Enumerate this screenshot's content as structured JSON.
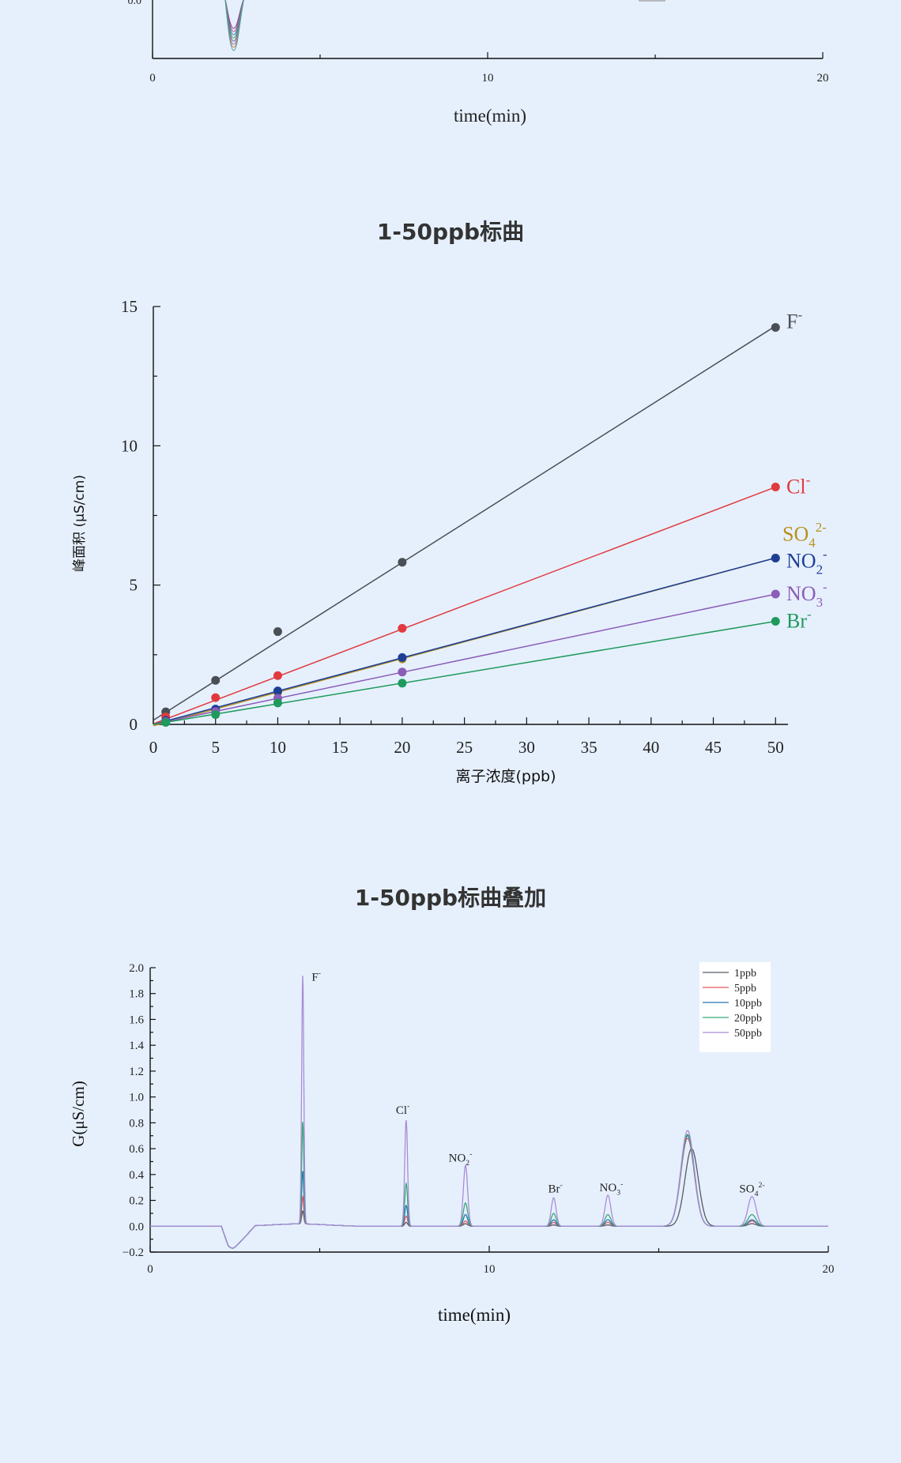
{
  "top_chart": {
    "xlabel": "time(min)",
    "x_ticks": [
      "0",
      "10",
      "20"
    ],
    "y_tick_partial": "0.0"
  },
  "calibration": {
    "title": "1-50ppb标曲"
  },
  "overlay": {
    "title": "1-50ppb标曲叠加"
  },
  "chart_data": [
    {
      "type": "line",
      "title": "",
      "xlabel": "time(min)",
      "ylabel": "",
      "xlim": [
        0,
        20
      ],
      "x_ticks": [
        0,
        10,
        20
      ],
      "note": "partially cropped chromatogram overlay; only a negative dip near 2.4 min is visible",
      "series": []
    },
    {
      "type": "scatter",
      "title": "1-50ppb标曲",
      "xlabel": "离子浓度(ppb)",
      "ylabel": "峰面积 (μS/cm)",
      "xlim": [
        0,
        51
      ],
      "ylim": [
        0,
        15
      ],
      "x_ticks": [
        0,
        5,
        10,
        15,
        20,
        25,
        30,
        35,
        40,
        45,
        50
      ],
      "y_ticks": [
        0,
        5,
        10,
        15
      ],
      "grid": false,
      "x": [
        1,
        5,
        10,
        20,
        50
      ],
      "series": [
        {
          "label": "F",
          "sup": "-",
          "sub": "",
          "color": "#4a4f55",
          "values": [
            0.45,
            1.58,
            3.33,
            5.82,
            14.25
          ],
          "fit": [
            0.15,
            0.283
          ]
        },
        {
          "label": "Cl",
          "sup": "-",
          "sub": "",
          "color": "#e03a3e",
          "values": [
            0.27,
            0.96,
            1.75,
            3.45,
            8.52
          ],
          "fit": [
            0.02,
            0.17
          ]
        },
        {
          "label": "SO",
          "sup": "2-",
          "sub": "4",
          "color": "#b8901e",
          "values": [
            0.12,
            0.52,
            1.15,
            2.35,
            5.97
          ],
          "fit": [
            -0.05,
            0.1205
          ]
        },
        {
          "label": "NO",
          "sup": "-",
          "sub": "2",
          "color": "#1d3f96",
          "values": [
            0.14,
            0.55,
            1.2,
            2.4,
            5.97
          ],
          "fit": [
            0.0,
            0.1195
          ]
        },
        {
          "label": "NO",
          "sup": "-",
          "sub": "3",
          "color": "#8b5cb8",
          "values": [
            0.1,
            0.46,
            0.94,
            1.88,
            4.68
          ],
          "fit": [
            0.0,
            0.0935
          ]
        },
        {
          "label": "Br",
          "sup": "-",
          "sub": "",
          "color": "#1f9a5c",
          "values": [
            0.07,
            0.35,
            0.77,
            1.48,
            3.7
          ],
          "fit": [
            0.0,
            0.074
          ]
        }
      ]
    },
    {
      "type": "line",
      "title": "1-50ppb标曲叠加",
      "xlabel": "time(min)",
      "ylabel": "G(μS/cm)",
      "xlim": [
        0,
        20
      ],
      "ylim": [
        -0.2,
        2.0
      ],
      "x_ticks": [
        0,
        10,
        20
      ],
      "y_ticks": [
        -0.2,
        0.0,
        0.2,
        0.4,
        0.6,
        0.8,
        1.0,
        1.2,
        1.4,
        1.6,
        1.8,
        2.0
      ],
      "legend": "top-right",
      "series": [
        {
          "name": "1ppb",
          "color": "#555b63",
          "peak_heights": [
            0.1,
            0.03,
            0.02,
            0.01,
            0.01,
            0.6,
            0.02
          ]
        },
        {
          "name": "5ppb",
          "color": "#e8585c",
          "peak_heights": [
            0.21,
            0.08,
            0.04,
            0.03,
            0.03,
            0.68,
            0.04
          ]
        },
        {
          "name": "10ppb",
          "color": "#2878b5",
          "peak_heights": [
            0.41,
            0.16,
            0.09,
            0.05,
            0.05,
            0.7,
            0.05
          ]
        },
        {
          "name": "20ppb",
          "color": "#3aa876",
          "peak_heights": [
            0.79,
            0.33,
            0.18,
            0.1,
            0.09,
            0.71,
            0.09
          ]
        },
        {
          "name": "50ppb",
          "color": "#a98cd6",
          "peak_heights": [
            1.92,
            0.82,
            0.47,
            0.22,
            0.24,
            0.74,
            0.23
          ]
        }
      ],
      "peak_times": [
        4.5,
        7.55,
        9.3,
        11.9,
        13.5,
        15.85,
        17.75
      ],
      "peak_labels": [
        {
          "label": "F",
          "sup": "-",
          "sub": "",
          "x": 4.9,
          "y": 1.9
        },
        {
          "label": "Cl",
          "sup": "-",
          "sub": "",
          "x": 7.45,
          "y": 0.87
        },
        {
          "label": "NO",
          "sup": "-",
          "sub": "2",
          "x": 9.15,
          "y": 0.5
        },
        {
          "label": "Br",
          "sup": "-",
          "sub": "",
          "x": 11.95,
          "y": 0.26
        },
        {
          "label": "NO",
          "sup": "-",
          "sub": "3",
          "x": 13.6,
          "y": 0.27
        },
        {
          "label": "SO",
          "sup": "2-",
          "sub": "4",
          "x": 17.75,
          "y": 0.26
        }
      ]
    }
  ]
}
